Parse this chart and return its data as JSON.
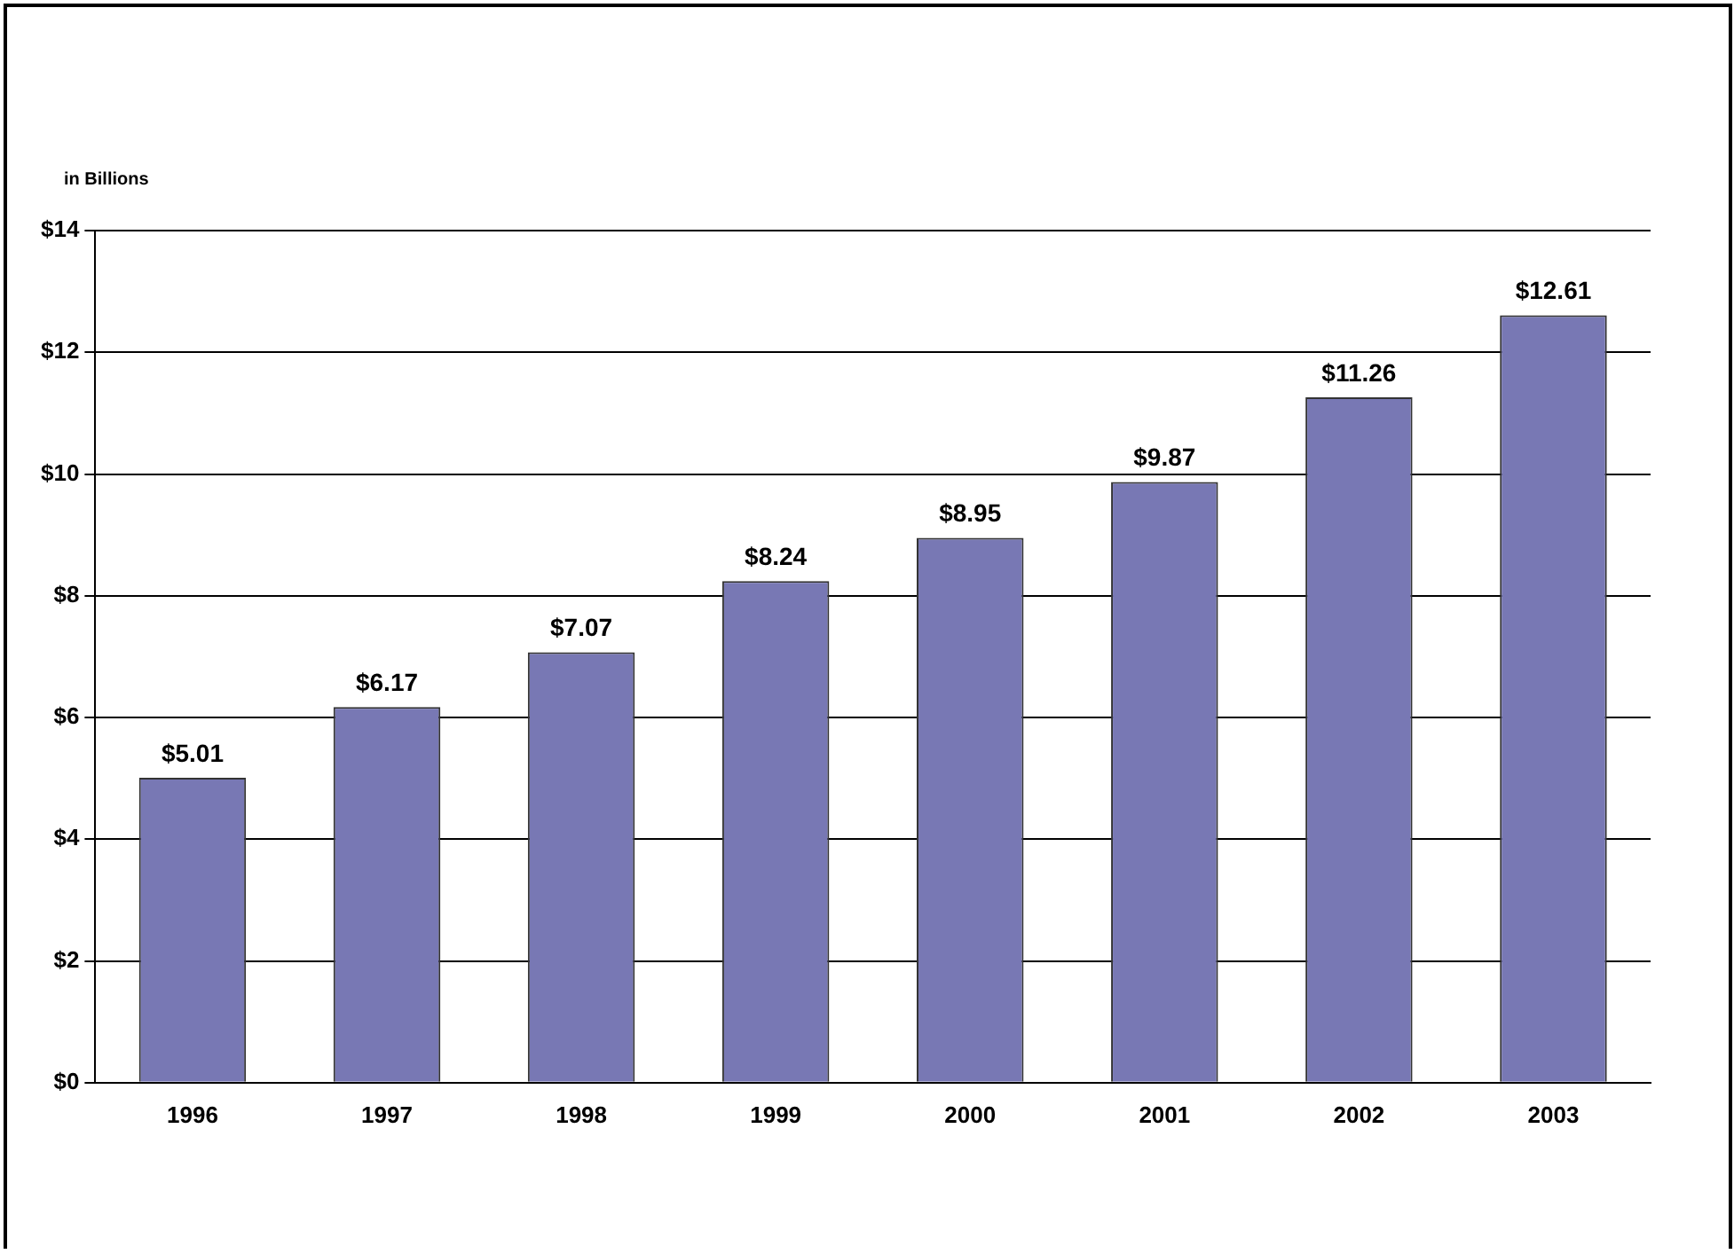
{
  "chart_data": {
    "type": "bar",
    "ylabel": "in Billions",
    "categories": [
      "1996",
      "1997",
      "1998",
      "1999",
      "2000",
      "2001",
      "2002",
      "2003"
    ],
    "values": [
      5.01,
      6.17,
      7.07,
      8.24,
      8.95,
      9.87,
      11.26,
      12.61
    ],
    "value_labels": [
      "$5.01",
      "$6.17",
      "$7.07",
      "$8.24",
      "$8.95",
      "$9.87",
      "$11.26",
      "$12.61"
    ],
    "color": "#7878b4",
    "ylim": [
      0,
      14
    ],
    "yticks": [
      {
        "value": 0,
        "label": "$0"
      },
      {
        "value": 2,
        "label": "$2"
      },
      {
        "value": 4,
        "label": "$4"
      },
      {
        "value": 6,
        "label": "$6"
      },
      {
        "value": 8,
        "label": "$8"
      },
      {
        "value": 10,
        "label": "$10"
      },
      {
        "value": 12,
        "label": "$12"
      },
      {
        "value": 14,
        "label": "$14"
      }
    ],
    "grid": "y",
    "legend": false
  }
}
